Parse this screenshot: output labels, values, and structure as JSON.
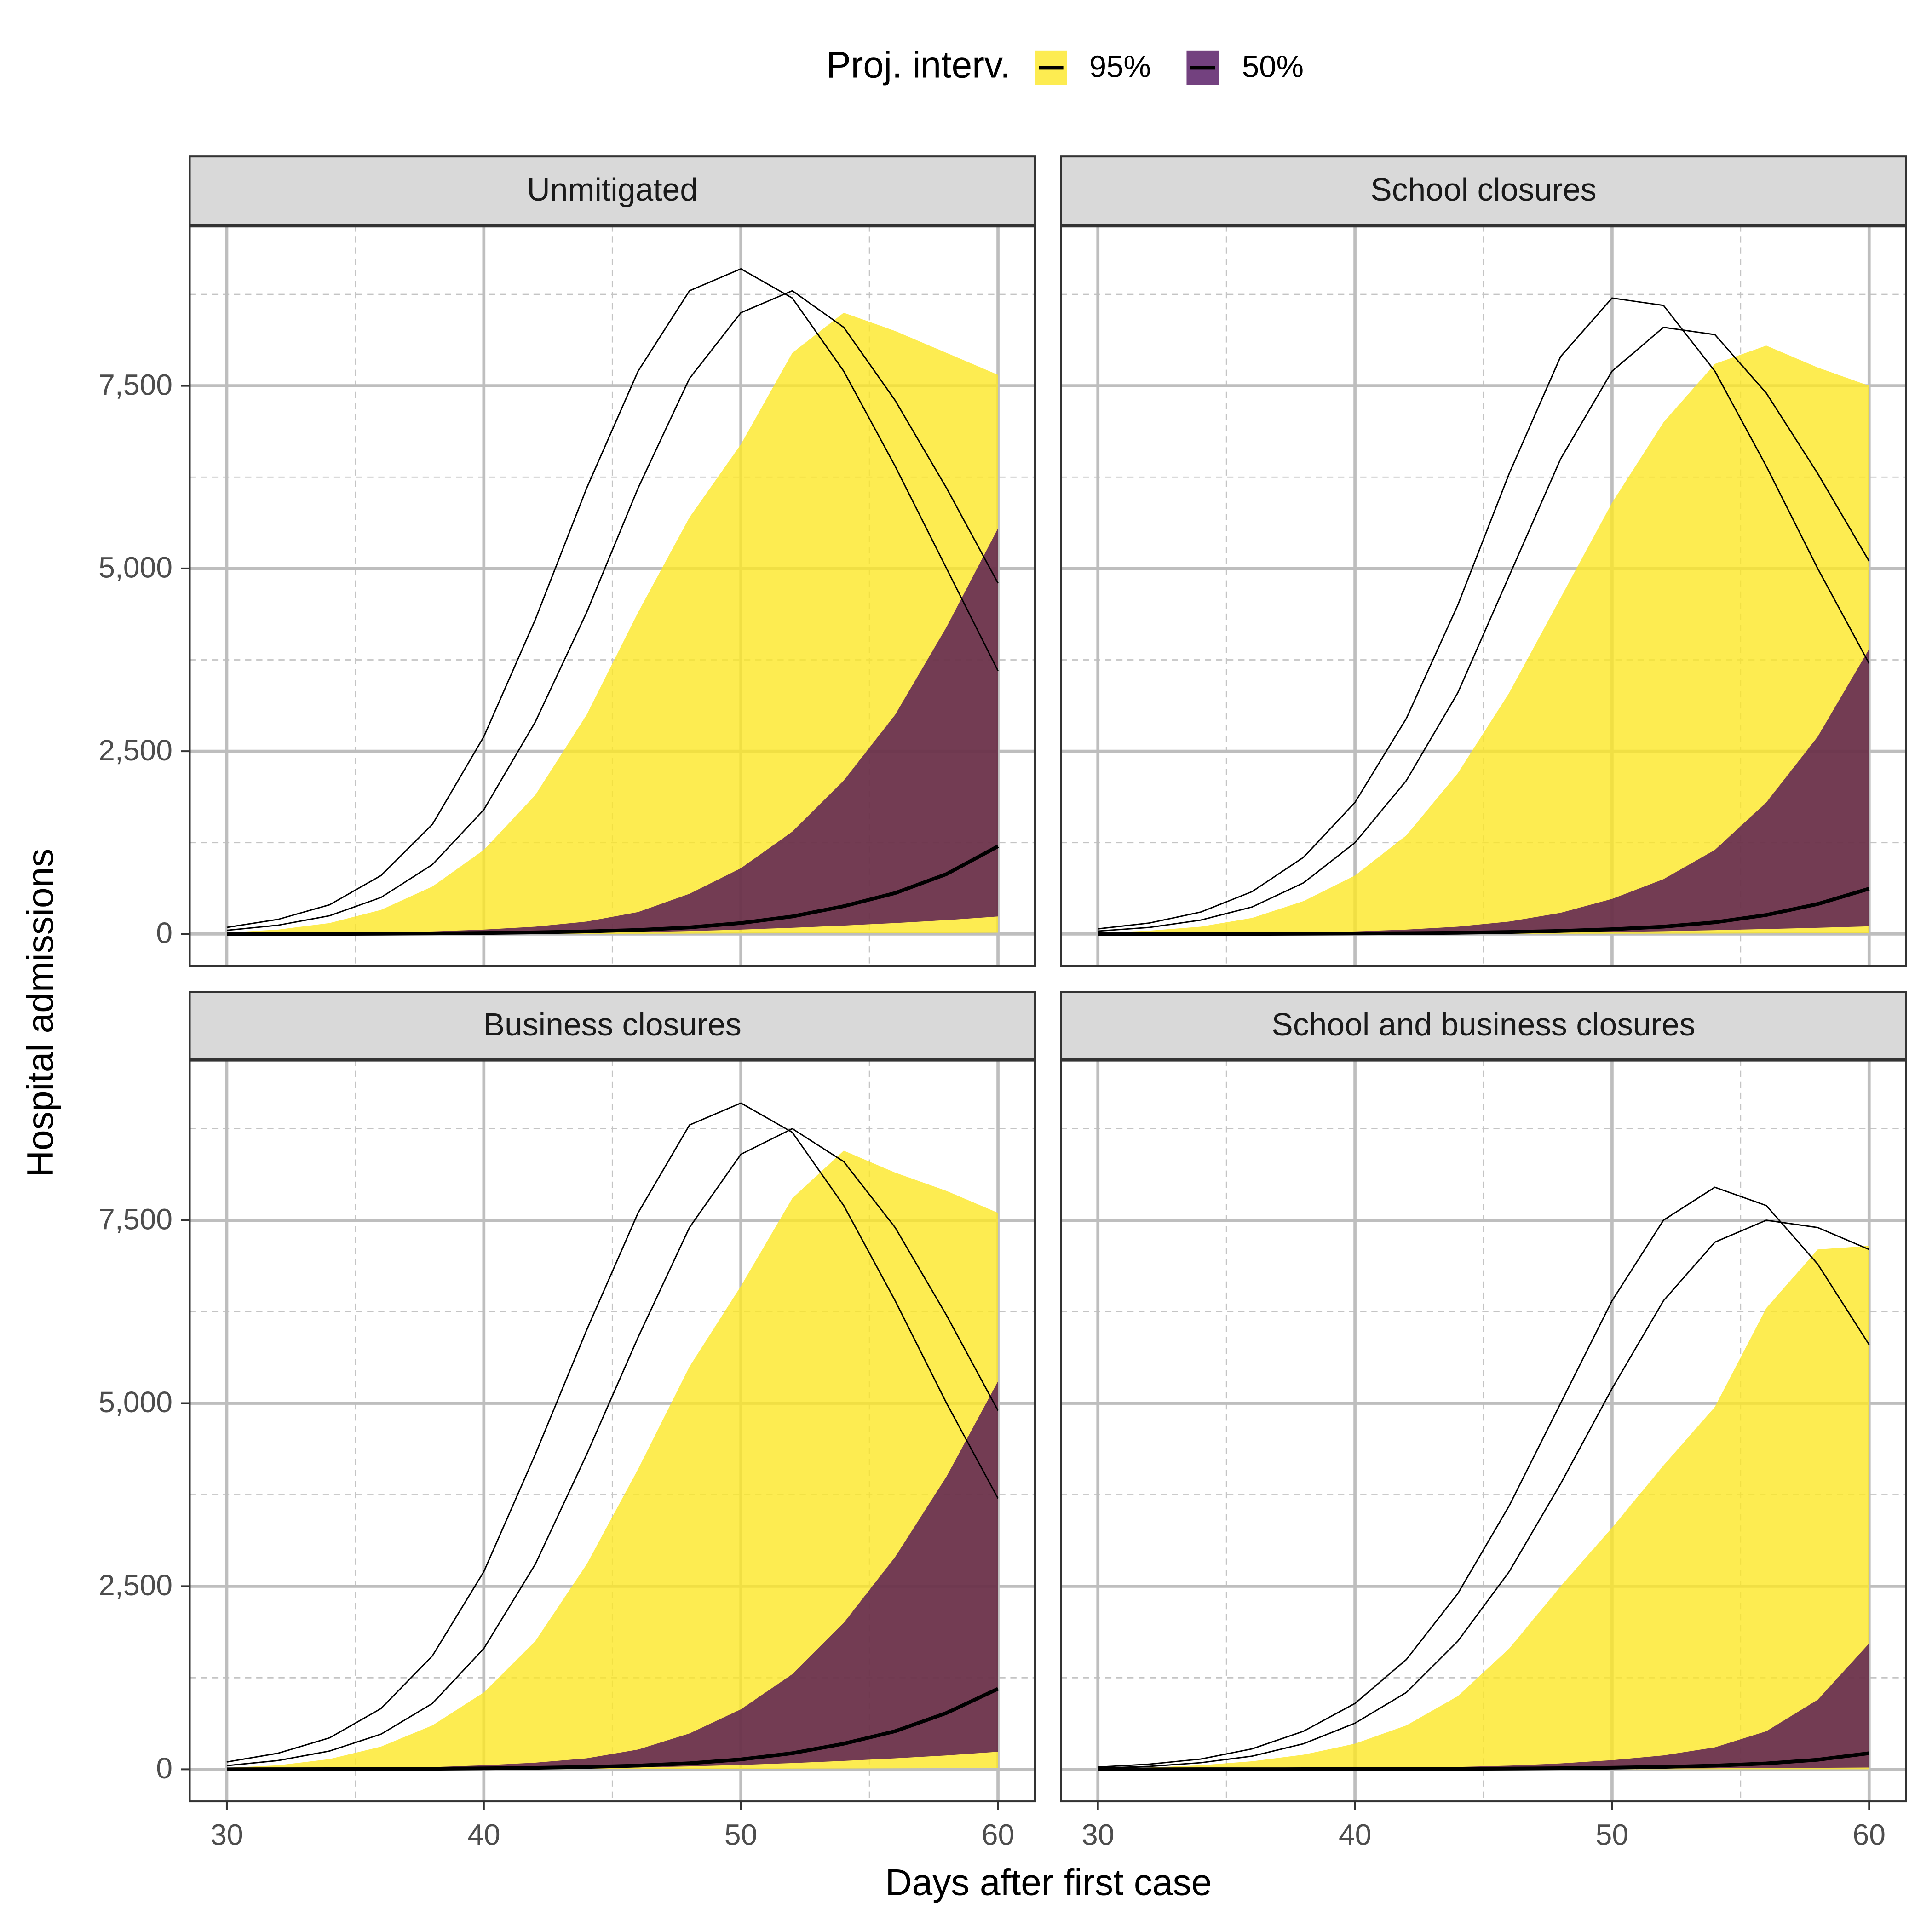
{
  "legend_title": "Proj. interv.",
  "xlabel": "Days after first case",
  "ylabel": "Hospital admissions",
  "chart_data": [
    {
      "type": "area",
      "title": "Unmitigated",
      "x": [
        30,
        32,
        34,
        36,
        38,
        40,
        42,
        44,
        46,
        48,
        50,
        52,
        54,
        56,
        58,
        60
      ],
      "xlim": [
        28.56,
        61.44
      ],
      "ylim": [
        -438,
        9693
      ],
      "xticks": [
        30,
        40,
        50,
        60
      ],
      "yticks": [
        0,
        {
          "value": 2500,
          "label": "2,500"
        },
        {
          "value": 5000,
          "label": "5,000"
        },
        {
          "value": 7500,
          "label": "7,500"
        }
      ],
      "x_minor_grid": [
        35,
        45,
        55
      ],
      "y_minor_grid": [
        1250,
        3750,
        6250,
        8750
      ],
      "grid": true,
      "series": [
        {
          "name": "95%",
          "color": "#fde725",
          "opacity": 0.8,
          "values": [
            20,
            60,
            150,
            330,
            650,
            1150,
            1900,
            3000,
            4400,
            5700,
            6700,
            7950,
            8500,
            8250,
            7950,
            7650
          ],
          "lower": [
            0,
            0,
            0,
            0,
            0,
            0,
            1,
            2,
            3,
            5,
            7,
            9,
            11,
            13,
            15,
            18
          ]
        },
        {
          "name": "50%",
          "color": "#440154",
          "opacity": 0.75,
          "values": [
            0,
            5,
            10,
            20,
            35,
            60,
            100,
            170,
            300,
            550,
            900,
            1400,
            2100,
            3000,
            4200,
            5550
          ],
          "lower": [
            0,
            0,
            1,
            2,
            3,
            5,
            10,
            15,
            25,
            40,
            60,
            85,
            115,
            150,
            190,
            240
          ]
        }
      ],
      "median": [
        0,
        1,
        2,
        4,
        8,
        14,
        22,
        35,
        55,
        90,
        150,
        240,
        380,
        560,
        820,
        1200
      ],
      "trajectories": [
        [
          90,
          200,
          400,
          800,
          1500,
          2700,
          4300,
          6100,
          7700,
          8800,
          9100,
          8700,
          7700,
          6400,
          5000,
          3600
        ],
        [
          50,
          120,
          250,
          500,
          950,
          1700,
          2900,
          4400,
          6100,
          7600,
          8500,
          8800,
          8300,
          7300,
          6100,
          4800
        ]
      ]
    },
    {
      "type": "area",
      "title": "School closures",
      "x": [
        30,
        32,
        34,
        36,
        38,
        40,
        42,
        44,
        46,
        48,
        50,
        52,
        54,
        56,
        58,
        60
      ],
      "xlim": [
        28.56,
        61.44
      ],
      "ylim": [
        -438,
        9693
      ],
      "xticks": [
        30,
        40,
        50,
        60
      ],
      "yticks": [
        0,
        {
          "value": 2500,
          "label": "2,500"
        },
        {
          "value": 5000,
          "label": "5,000"
        },
        {
          "value": 7500,
          "label": "7,500"
        }
      ],
      "x_minor_grid": [
        35,
        45,
        55
      ],
      "y_minor_grid": [
        1250,
        3750,
        6250,
        8750
      ],
      "grid": true,
      "series": [
        {
          "name": "95%",
          "color": "#fde725",
          "opacity": 0.8,
          "values": [
            15,
            45,
            100,
            220,
            450,
            800,
            1350,
            2200,
            3300,
            4600,
            5900,
            7000,
            7800,
            8050,
            7750,
            7500
          ],
          "lower": [
            0,
            0,
            0,
            0,
            0,
            0,
            1,
            1,
            2,
            3,
            4,
            5,
            6,
            8,
            10,
            12
          ]
        },
        {
          "name": "50%",
          "color": "#440154",
          "opacity": 0.75,
          "values": [
            0,
            3,
            6,
            12,
            20,
            35,
            60,
            100,
            170,
            290,
            480,
            750,
            1150,
            1800,
            2700,
            3900
          ],
          "lower": [
            0,
            0,
            1,
            1,
            2,
            3,
            5,
            8,
            12,
            18,
            27,
            38,
            52,
            68,
            85,
            105
          ]
        }
      ],
      "median": [
        0,
        1,
        1,
        2,
        4,
        7,
        11,
        17,
        27,
        42,
        65,
        100,
        160,
        260,
        410,
        620
      ],
      "trajectories": [
        [
          70,
          150,
          300,
          580,
          1050,
          1800,
          2950,
          4500,
          6300,
          7900,
          8700,
          8600,
          7700,
          6400,
          5000,
          3700
        ],
        [
          40,
          90,
          190,
          370,
          700,
          1250,
          2100,
          3300,
          4900,
          6500,
          7700,
          8300,
          8200,
          7400,
          6300,
          5100
        ]
      ]
    },
    {
      "type": "area",
      "title": "Business closures",
      "x": [
        30,
        32,
        34,
        36,
        38,
        40,
        42,
        44,
        46,
        48,
        50,
        52,
        54,
        56,
        58,
        60
      ],
      "xlim": [
        28.56,
        61.44
      ],
      "ylim": [
        -438,
        9693
      ],
      "xticks": [
        30,
        40,
        50,
        60
      ],
      "yticks": [
        0,
        {
          "value": 2500,
          "label": "2,500"
        },
        {
          "value": 5000,
          "label": "5,000"
        },
        {
          "value": 7500,
          "label": "7,500"
        }
      ],
      "x_minor_grid": [
        35,
        45,
        55
      ],
      "y_minor_grid": [
        1250,
        3750,
        6250,
        8750
      ],
      "grid": true,
      "series": [
        {
          "name": "95%",
          "color": "#fde725",
          "opacity": 0.8,
          "values": [
            20,
            55,
            140,
            310,
            600,
            1050,
            1750,
            2800,
            4100,
            5500,
            6600,
            7800,
            8450,
            8150,
            7900,
            7600
          ],
          "lower": [
            0,
            0,
            0,
            0,
            0,
            0,
            1,
            2,
            3,
            5,
            7,
            9,
            11,
            13,
            15,
            18
          ]
        },
        {
          "name": "50%",
          "color": "#440154",
          "opacity": 0.75,
          "values": [
            0,
            5,
            10,
            18,
            30,
            55,
            90,
            150,
            270,
            490,
            820,
            1300,
            2000,
            2900,
            4000,
            5300
          ],
          "lower": [
            0,
            0,
            1,
            2,
            3,
            5,
            10,
            15,
            25,
            40,
            60,
            85,
            115,
            150,
            190,
            240
          ]
        }
      ],
      "median": [
        0,
        1,
        2,
        4,
        8,
        13,
        20,
        32,
        50,
        82,
        135,
        220,
        350,
        520,
        770,
        1100
      ],
      "trajectories": [
        [
          100,
          220,
          430,
          830,
          1550,
          2700,
          4300,
          6000,
          7600,
          8800,
          9100,
          8700,
          7700,
          6400,
          5000,
          3700
        ],
        [
          50,
          120,
          250,
          480,
          900,
          1650,
          2800,
          4300,
          5900,
          7400,
          8400,
          8750,
          8300,
          7400,
          6200,
          4900
        ]
      ]
    },
    {
      "type": "area",
      "title": "School and business closures",
      "x": [
        30,
        32,
        34,
        36,
        38,
        40,
        42,
        44,
        46,
        48,
        50,
        52,
        54,
        56,
        58,
        60
      ],
      "xlim": [
        28.56,
        61.44
      ],
      "ylim": [
        -438,
        9693
      ],
      "xticks": [
        30,
        40,
        50,
        60
      ],
      "yticks": [
        0,
        {
          "value": 2500,
          "label": "2,500"
        },
        {
          "value": 5000,
          "label": "5,000"
        },
        {
          "value": 7500,
          "label": "7,500"
        }
      ],
      "x_minor_grid": [
        35,
        45,
        55
      ],
      "y_minor_grid": [
        1250,
        3750,
        6250,
        8750
      ],
      "grid": true,
      "series": [
        {
          "name": "95%",
          "color": "#fde725",
          "opacity": 0.8,
          "values": [
            10,
            25,
            55,
            110,
            200,
            350,
            600,
            1000,
            1650,
            2500,
            3300,
            4150,
            4950,
            6300,
            7100,
            7150
          ],
          "lower": [
            0,
            0,
            0,
            0,
            0,
            0,
            0,
            0,
            0,
            0,
            0,
            0,
            0,
            0,
            0,
            0
          ]
        },
        {
          "name": "50%",
          "color": "#440154",
          "opacity": 0.75,
          "values": [
            0,
            1,
            2,
            4,
            7,
            12,
            20,
            32,
            50,
            80,
            125,
            190,
            300,
            520,
            950,
            1720
          ],
          "lower": [
            0,
            0,
            0,
            1,
            1,
            2,
            3,
            4,
            5,
            7,
            9,
            11,
            14,
            17,
            20,
            24
          ]
        }
      ],
      "median": [
        0,
        0,
        1,
        1,
        2,
        3,
        5,
        7,
        10,
        15,
        22,
        33,
        50,
        80,
        130,
        220
      ],
      "trajectories": [
        [
          30,
          70,
          140,
          280,
          520,
          900,
          1500,
          2400,
          3600,
          5000,
          6400,
          7500,
          7950,
          7700,
          6900,
          5800
        ],
        [
          15,
          40,
          90,
          180,
          350,
          630,
          1050,
          1750,
          2700,
          3900,
          5200,
          6400,
          7200,
          7500,
          7400,
          7100
        ]
      ]
    }
  ]
}
